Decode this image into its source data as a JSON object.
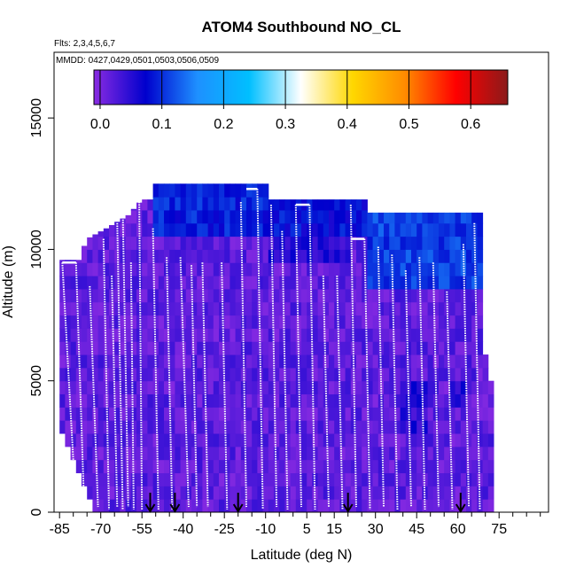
{
  "chart_data": {
    "type": "heatmap",
    "title": "ATOM4 Southbound NO_CL",
    "subtitle_flights": "Flts: 2,3,4,5,6,7",
    "subtitle_dates": "MMDD: 0427,0429,0501,0503,0506,0509",
    "xlabel": "Latitude (deg N)",
    "ylabel": "Altitude (m)",
    "xlim": [
      -87,
      93
    ],
    "ylim": [
      0,
      17500
    ],
    "x_ticks": [
      -85,
      -70,
      -55,
      -40,
      -25,
      -10,
      5,
      15,
      30,
      45,
      60,
      75
    ],
    "x_ticks_minor": [
      -80,
      -75,
      -65,
      -60,
      -50,
      -45,
      -35,
      -30,
      -20,
      -15,
      -5,
      0,
      10,
      20,
      25,
      35,
      40,
      50,
      55,
      65,
      70,
      80,
      85,
      90
    ],
    "y_ticks": [
      0,
      5000,
      10000,
      15000
    ],
    "y_tick_labels": [
      "0",
      "5000",
      "10000",
      "15000"
    ],
    "colorbar": {
      "range": [
        -0.01,
        0.66
      ],
      "ticks": [
        0.0,
        0.1,
        0.2,
        0.3,
        0.4,
        0.5,
        0.6
      ],
      "tick_labels": [
        "0.0",
        "0.1",
        "0.2",
        "0.3",
        "0.4",
        "0.5",
        "0.6"
      ],
      "colors": [
        "#8a2be2",
        "#0000cd",
        "#1e90ff",
        "#00bfff",
        "#ffffff",
        "#ffd700",
        "#ff8c00",
        "#ff0000",
        "#8b1a1a"
      ]
    },
    "field_extent": [
      {
        "lat": -85,
        "top": 5000
      },
      {
        "lat": -84,
        "top": 9600
      },
      {
        "lat": -78,
        "top": 9600
      },
      {
        "lat": -75,
        "top": 10400
      },
      {
        "lat": -68,
        "top": 10800
      },
      {
        "lat": -60,
        "top": 11300
      },
      {
        "lat": -55,
        "top": 11900
      },
      {
        "lat": -51,
        "top": 11900
      },
      {
        "lat": -50,
        "top": 12500
      },
      {
        "lat": -10,
        "top": 12500
      },
      {
        "lat": -8,
        "top": 11900
      },
      {
        "lat": 27,
        "top": 11900
      },
      {
        "lat": 27.5,
        "top": 11400
      },
      {
        "lat": 68,
        "top": 11400
      },
      {
        "lat": 69,
        "top": 9000
      },
      {
        "lat": 70,
        "top": 6000
      },
      {
        "lat": 72,
        "top": 5000
      }
    ],
    "field_bottom": [
      {
        "lat": 72,
        "bottom": 200
      },
      {
        "lat": -73,
        "bottom": 200
      },
      {
        "lat": -78,
        "bottom": 1500
      },
      {
        "lat": -80,
        "bottom": 2000
      },
      {
        "lat": -85,
        "bottom": 3000
      }
    ],
    "field_background_value": 0.0,
    "enhanced_regions": [
      {
        "lat_range": [
          -50,
          -10
        ],
        "alt_range": [
          10500,
          12500
        ],
        "value": 0.09
      },
      {
        "lat_range": [
          -10,
          27
        ],
        "alt_range": [
          10500,
          11900
        ],
        "value": 0.08
      },
      {
        "lat_range": [
          27,
          68
        ],
        "alt_range": [
          8500,
          11400
        ],
        "value": 0.11
      },
      {
        "lat_range": [
          -8,
          20
        ],
        "alt_range": [
          9500,
          10500
        ],
        "value": 0.05
      },
      {
        "lat_range": [
          40,
          48
        ],
        "alt_range": [
          3000,
          5000
        ],
        "value": 0.05
      },
      {
        "lat_range": [
          58,
          62
        ],
        "alt_range": [
          4000,
          5000
        ],
        "value": 0.06
      }
    ],
    "profiles": [
      {
        "top_lat": -84,
        "top_alt": 9500,
        "bottom_lat": -79,
        "bottom_alt": 100
      },
      {
        "top_lat": -79,
        "top_alt": 9500,
        "bottom_lat": -76,
        "bottom_alt": 100
      },
      {
        "top_lat": -74,
        "top_alt": 8600,
        "bottom_lat": -71,
        "bottom_alt": 200
      },
      {
        "top_lat": -69,
        "top_alt": 10400,
        "bottom_lat": -67,
        "bottom_alt": 100
      },
      {
        "top_lat": -66,
        "top_alt": 9000,
        "bottom_lat": -64,
        "bottom_alt": 200
      },
      {
        "top_lat": -64,
        "top_alt": 11000,
        "bottom_lat": -62,
        "bottom_alt": 100
      },
      {
        "top_lat": -62,
        "top_alt": 11500,
        "bottom_lat": -60,
        "bottom_alt": 200
      },
      {
        "top_lat": -59,
        "top_alt": 9500,
        "bottom_lat": -58,
        "bottom_alt": 100
      },
      {
        "top_lat": -56,
        "top_alt": 11900,
        "bottom_lat": -55,
        "bottom_alt": 100
      },
      {
        "top_lat": -51,
        "top_alt": 10800,
        "bottom_lat": -49,
        "bottom_alt": 100
      },
      {
        "top_lat": -46,
        "top_alt": 9700,
        "bottom_lat": -44,
        "bottom_alt": 100
      },
      {
        "top_lat": -41,
        "top_alt": 9700,
        "bottom_lat": -38,
        "bottom_alt": 200
      },
      {
        "top_lat": -37,
        "top_alt": 9400,
        "bottom_lat": -35,
        "bottom_alt": 200
      },
      {
        "top_lat": -33,
        "top_alt": 9500,
        "bottom_lat": -31,
        "bottom_alt": 200
      },
      {
        "top_lat": -26,
        "top_alt": 9500,
        "bottom_lat": -24,
        "bottom_alt": 100
      },
      {
        "top_lat": -19,
        "top_alt": 11800,
        "bottom_lat": -17,
        "bottom_alt": 200
      },
      {
        "top_lat": -13,
        "top_alt": 12300,
        "bottom_lat": -11,
        "bottom_alt": 100
      },
      {
        "top_lat": -8,
        "top_alt": 11700,
        "bottom_lat": -6,
        "bottom_alt": 200
      },
      {
        "top_lat": -4,
        "top_alt": 10700,
        "bottom_lat": -2,
        "bottom_alt": 100
      },
      {
        "top_lat": 1,
        "top_alt": 11700,
        "bottom_lat": 3,
        "bottom_alt": 200
      },
      {
        "top_lat": 6,
        "top_alt": 11700,
        "bottom_lat": 8,
        "bottom_alt": 100
      },
      {
        "top_lat": 11,
        "top_alt": 9000,
        "bottom_lat": 13,
        "bottom_alt": 200
      },
      {
        "top_lat": 16,
        "top_alt": 9000,
        "bottom_lat": 18,
        "bottom_alt": 100
      },
      {
        "top_lat": 21,
        "top_alt": 11700,
        "bottom_lat": 23,
        "bottom_alt": 200
      },
      {
        "top_lat": 26,
        "top_alt": 10400,
        "bottom_lat": 28,
        "bottom_alt": 100
      },
      {
        "top_lat": 31,
        "top_alt": 10100,
        "bottom_lat": 33,
        "bottom_alt": 200
      },
      {
        "top_lat": 36,
        "top_alt": 9800,
        "bottom_lat": 38,
        "bottom_alt": 100
      },
      {
        "top_lat": 41,
        "top_alt": 9200,
        "bottom_lat": 43,
        "bottom_alt": 200
      },
      {
        "top_lat": 46,
        "top_alt": 9700,
        "bottom_lat": 48,
        "bottom_alt": 100
      },
      {
        "top_lat": 51,
        "top_alt": 9500,
        "bottom_lat": 53,
        "bottom_alt": 200
      },
      {
        "top_lat": 56,
        "top_alt": 8400,
        "bottom_lat": 58,
        "bottom_alt": 100
      },
      {
        "top_lat": 62,
        "top_alt": 10200,
        "bottom_lat": 64,
        "bottom_alt": 200
      },
      {
        "top_lat": 66,
        "top_alt": 11000,
        "bottom_lat": 68,
        "bottom_alt": 100
      }
    ],
    "level_legs": [
      {
        "lat_range": [
          -84,
          -79
        ],
        "alt": 9500
      },
      {
        "lat_range": [
          -17,
          -13
        ],
        "alt": 12300
      },
      {
        "lat_range": [
          1,
          6
        ],
        "alt": 11700
      },
      {
        "lat_range": [
          21,
          26
        ],
        "alt": 10400
      }
    ],
    "arrows_lat": [
      -52,
      -43,
      -20,
      20,
      61
    ]
  }
}
